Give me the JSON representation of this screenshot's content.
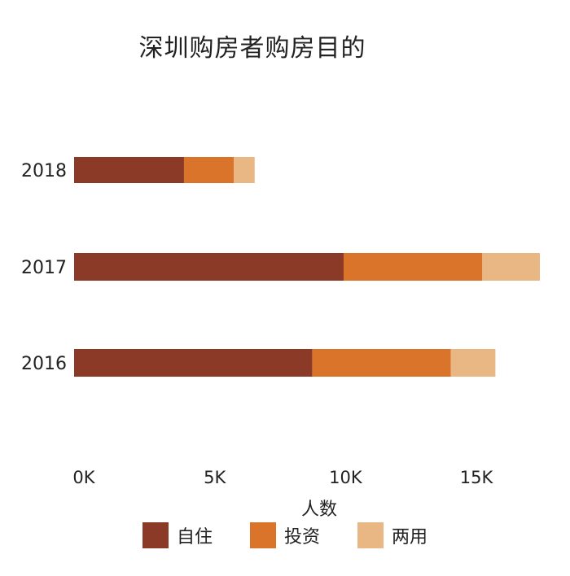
{
  "chart_data": {
    "type": "bar",
    "orientation": "horizontal",
    "stacked": true,
    "title": "深圳购房者购房目的",
    "xlabel": "人数",
    "ylabel": "",
    "categories": [
      "2018",
      "2017",
      "2016"
    ],
    "series": [
      {
        "name": "自住",
        "color": "#8B3A27",
        "values": [
          4200,
          10300,
          9100
        ]
      },
      {
        "name": "投资",
        "color": "#D9742A",
        "values": [
          1900,
          5300,
          5300
        ]
      },
      {
        "name": "两用",
        "color": "#E8B784",
        "values": [
          800,
          2200,
          1700
        ]
      }
    ],
    "xlim": [
      0,
      17800
    ],
    "xticks": [
      0,
      5000,
      10000,
      15000
    ],
    "xtick_labels": [
      "0K",
      "5K",
      "10K",
      "15K"
    ],
    "grid": false,
    "legend_position": "bottom"
  }
}
